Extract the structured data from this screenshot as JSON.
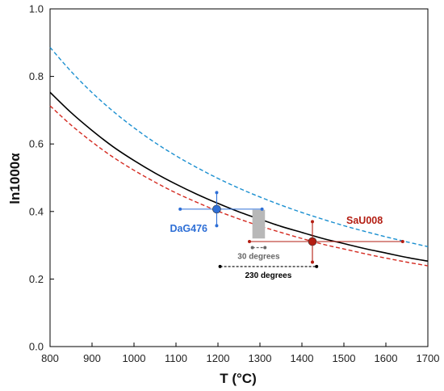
{
  "chart_data": {
    "type": "line",
    "xlabel": "T (°C)",
    "ylabel": "ln1000α",
    "xlim": [
      800,
      1700
    ],
    "ylim": [
      0.0,
      1.0
    ],
    "x_ticks": [
      "800",
      "900",
      "1000",
      "1100",
      "1200",
      "1300",
      "1400",
      "1500",
      "1600",
      "1700"
    ],
    "y_ticks": [
      "0.0",
      "0.2",
      "0.4",
      "0.6",
      "0.8",
      "1.0"
    ],
    "grid": false,
    "curve_x": [
      800,
      850,
      900,
      950,
      1000,
      1050,
      1100,
      1150,
      1200,
      1250,
      1300,
      1350,
      1400,
      1450,
      1500,
      1550,
      1600,
      1650,
      1700
    ],
    "series": [
      {
        "style": "dashed",
        "color": "#1a8fd0",
        "y": [
          0.886,
          0.815,
          0.752,
          0.697,
          0.648,
          0.604,
          0.565,
          0.53,
          0.498,
          0.469,
          0.443,
          0.419,
          0.397,
          0.377,
          0.358,
          0.341,
          0.325,
          0.31,
          0.296
        ]
      },
      {
        "style": "solid",
        "color": "#000000",
        "y": [
          0.753,
          0.693,
          0.64,
          0.592,
          0.551,
          0.514,
          0.481,
          0.451,
          0.424,
          0.399,
          0.377,
          0.356,
          0.338,
          0.32,
          0.305,
          0.29,
          0.277,
          0.264,
          0.253
        ]
      },
      {
        "style": "dashed",
        "color": "#d42a20",
        "y": [
          0.713,
          0.656,
          0.606,
          0.561,
          0.522,
          0.487,
          0.455,
          0.427,
          0.401,
          0.378,
          0.357,
          0.338,
          0.32,
          0.303,
          0.289,
          0.275,
          0.262,
          0.25,
          0.239
        ]
      }
    ],
    "samples": [
      {
        "label": "DaG476",
        "color": "#2e6fd6",
        "x": 1197,
        "y": 0.407,
        "xerr": [
          1110,
          1305
        ],
        "yerr": [
          0.358,
          0.456
        ]
      },
      {
        "label": "SaU008",
        "color": "#b31d12",
        "x": 1425,
        "y": 0.311,
        "xerr": [
          1275,
          1640
        ],
        "yerr": [
          0.25,
          0.37
        ]
      }
    ],
    "gray_band": {
      "x": [
        1282,
        1312
      ],
      "y": [
        0.32,
        0.405
      ]
    },
    "annotations": [
      {
        "text": "30 degrees",
        "x1": 1282,
        "x2": 1312,
        "y": 0.293,
        "color": "#666666"
      },
      {
        "text": "230 degrees",
        "x1": 1205,
        "x2": 1435,
        "y": 0.237,
        "color": "#000000"
      }
    ]
  }
}
